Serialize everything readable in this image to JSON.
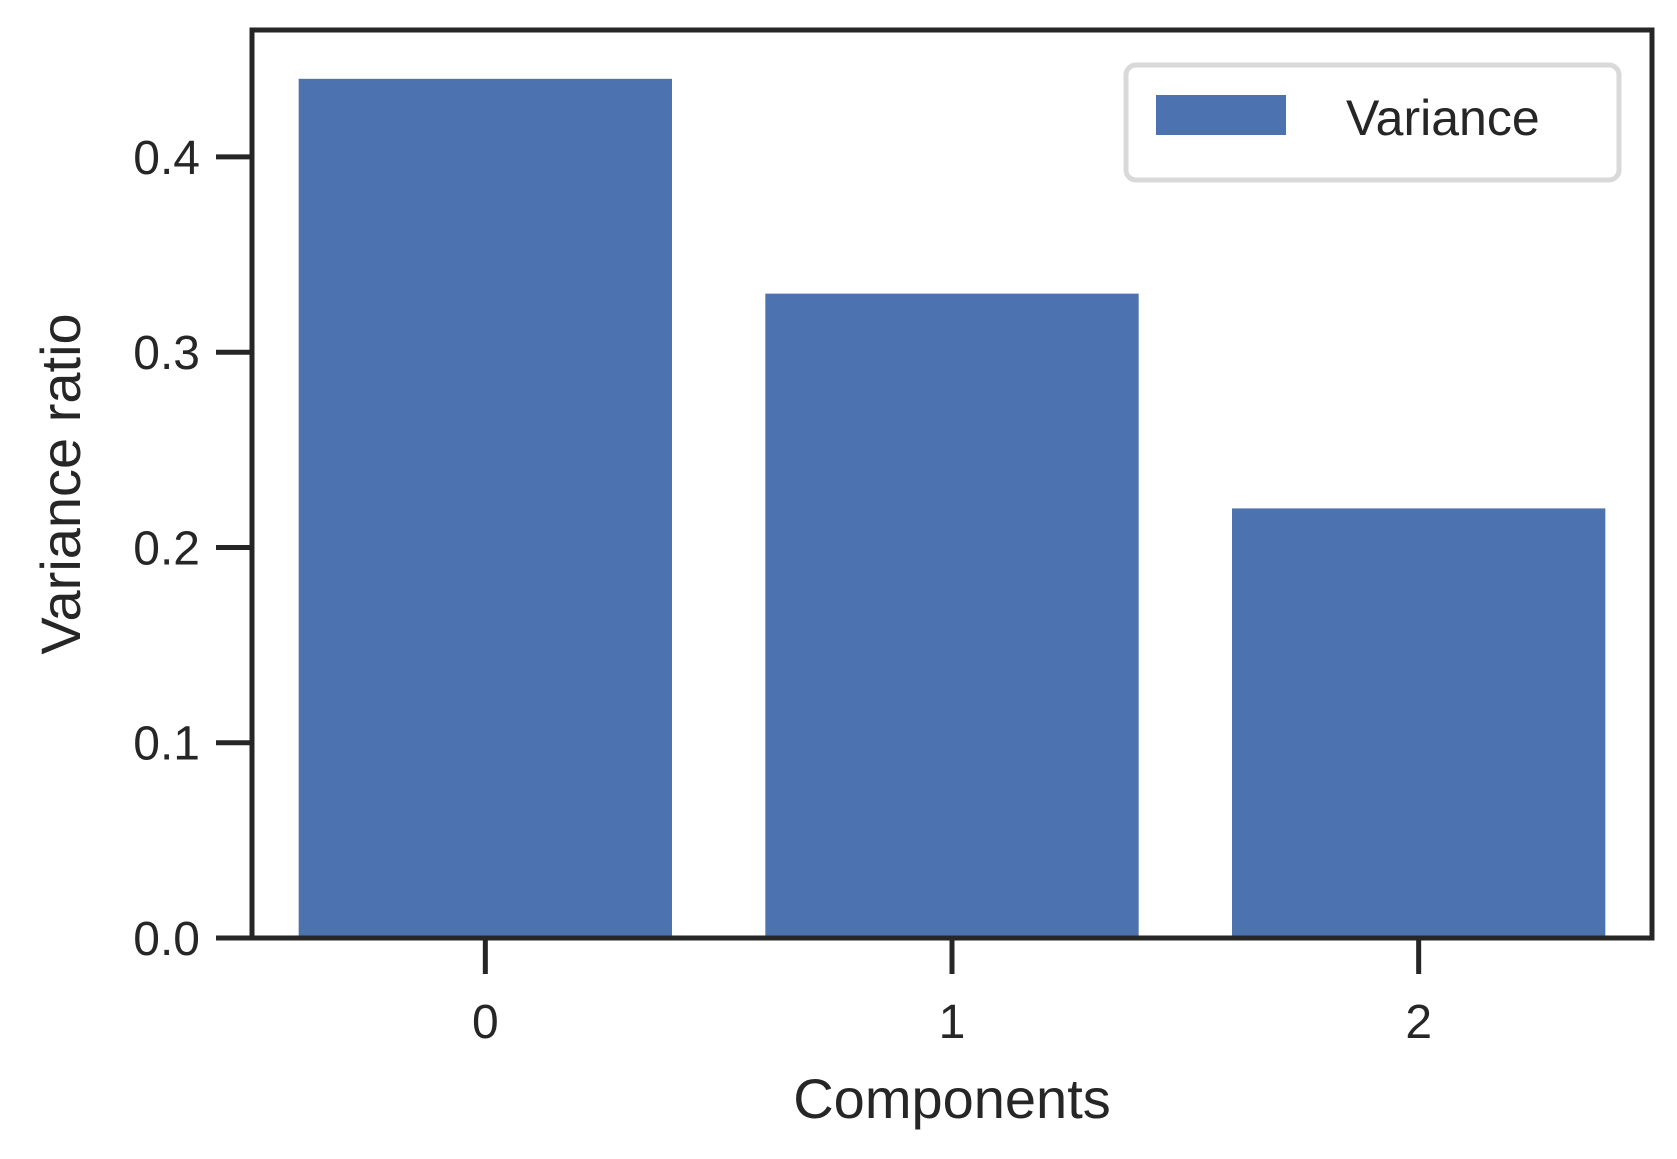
{
  "chart_data": {
    "type": "bar",
    "categories": [
      "0",
      "1",
      "2"
    ],
    "series": [
      {
        "name": "Variance",
        "values": [
          0.44,
          0.33,
          0.22
        ],
        "color": "#4c72b0"
      }
    ],
    "title": "",
    "xlabel": "Components",
    "ylabel": "Variance ratio",
    "ylim": [
      0,
      0.465
    ],
    "yticks": [
      "0.0",
      "0.1",
      "0.2",
      "0.3",
      "0.4"
    ],
    "grid": false,
    "legend": {
      "placement": "top-right",
      "entries": [
        "Variance"
      ]
    }
  }
}
